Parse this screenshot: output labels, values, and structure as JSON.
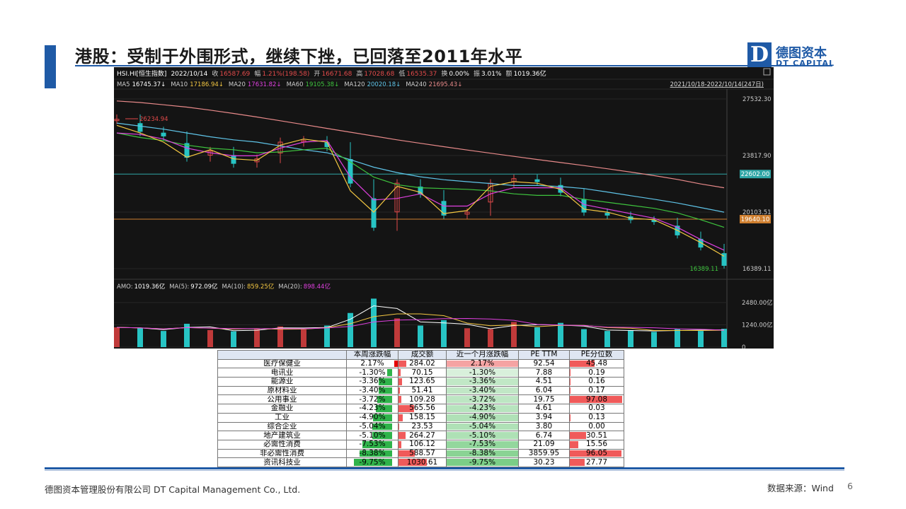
{
  "slide": {
    "title": "港股：受制于外围形式，继续下挫，已回落至2011年水平",
    "logo_mark": "D",
    "logo_cn": "德图资本",
    "logo_en": "DT CAPITAL",
    "footer_company": "德图资本管理股份有限公司  DT Capital  Management  Co., Ltd.",
    "footer_source": "数据来源：Wind",
    "page_number": "6",
    "accent_color": "#1f5aa6"
  },
  "chart_data": [
    {
      "type": "line",
      "chart_kind": "candlestick-with-moving-averages",
      "info_bar": {
        "symbol": "HSI.HI[恒生指数]",
        "date": "2022/10/14",
        "close_label": "收",
        "close": "16587.69",
        "change_label": "幅",
        "change": "1.21%(198.58)",
        "open_label": "开",
        "open": "16671.68",
        "high_label": "高",
        "high": "17028.68",
        "low_label": "低",
        "low": "16535.37",
        "turnover_label": "换",
        "turnover": "0.00%",
        "amplitude_label": "振",
        "amplitude": "3.01%",
        "amount_label": "额",
        "amount": "1019.36亿"
      },
      "ma_legend": [
        {
          "name": "MA5",
          "value": "16745.37↓",
          "color": "#ffffff"
        },
        {
          "name": "MA10",
          "value": "17186.94↓",
          "color": "#f5c842"
        },
        {
          "name": "MA20",
          "value": "17631.82↓",
          "color": "#e040e0"
        },
        {
          "name": "MA60",
          "value": "19105.38↓",
          "color": "#3ec43e"
        },
        {
          "name": "MA120",
          "value": "20020.18↓",
          "color": "#5fc4e8"
        },
        {
          "name": "MA240",
          "value": "21695.43↓",
          "color": "#e88a8a"
        }
      ],
      "date_range": "2021/10/18-2022/10/14(247日)",
      "y_axis": {
        "ticks": [
          "27532.30",
          "23817.90",
          "20103.51",
          "16389.11"
        ],
        "ylim": [
          16389.11,
          27532.3
        ]
      },
      "ref_lines": [
        {
          "label": "22602.00",
          "value": 22602,
          "color": "#2fa6a6"
        },
        {
          "label": "19640.10",
          "value": 19640.1,
          "color": "#d08030"
        }
      ],
      "annotations": [
        {
          "text": "26234.94",
          "value": 26234.94,
          "color": "#e24a4a"
        },
        {
          "text": "16389.11",
          "value": 16389.11,
          "color": "#3ec43e"
        }
      ],
      "ma_series": [
        {
          "name": "MA240",
          "color": "#e88a8a",
          "values": [
            27400,
            27300,
            27150,
            27000,
            26800,
            26580,
            26350,
            26100,
            25850,
            25600,
            25350,
            25100,
            24850,
            24620,
            24400,
            24180,
            23970,
            23760,
            23560,
            23360,
            23160,
            22950,
            22730,
            22500,
            22250,
            21950,
            21700
          ]
        },
        {
          "name": "MA120",
          "color": "#5fc4e8",
          "values": [
            25950,
            25750,
            25550,
            25300,
            25050,
            24850,
            24700,
            24450,
            24200,
            24000,
            23550,
            23050,
            22700,
            22420,
            22230,
            22100,
            21980,
            21850,
            21850,
            21780,
            21650,
            21420,
            21180,
            20950,
            20700,
            20400,
            20100
          ]
        },
        {
          "name": "MA60",
          "color": "#3ec43e",
          "values": [
            25300,
            25000,
            24800,
            24500,
            24300,
            24200,
            24000,
            24050,
            24200,
            24300,
            23400,
            22400,
            21900,
            21700,
            21650,
            21600,
            21500,
            21300,
            21200,
            21200,
            20950,
            20750,
            20550,
            20350,
            20050,
            19600,
            19100
          ]
        },
        {
          "name": "MA20",
          "color": "#e040e0",
          "values": [
            25300,
            25200,
            24900,
            24300,
            24000,
            23800,
            23800,
            24300,
            24700,
            24800,
            22400,
            20900,
            21000,
            21300,
            20500,
            20500,
            21300,
            21700,
            21700,
            21700,
            20600,
            20300,
            20000,
            19700,
            19100,
            18300,
            17600
          ]
        },
        {
          "name": "MA10",
          "color": "#f5c842",
          "values": [
            25800,
            25300,
            24700,
            23700,
            24200,
            23600,
            23500,
            24500,
            24900,
            24700,
            21500,
            20100,
            21800,
            21400,
            20000,
            20200,
            21800,
            22100,
            22000,
            21600,
            20300,
            20100,
            19700,
            19600,
            18900,
            18100,
            17200
          ]
        }
      ],
      "bar_values": [
        26200,
        25400,
        25100,
        23700,
        24100,
        23300,
        23600,
        24700,
        24800,
        24400,
        22000,
        19100,
        22000,
        21300,
        19900,
        20100,
        22000,
        22300,
        22100,
        21400,
        20100,
        19900,
        19600,
        19500,
        18600,
        17800,
        16600
      ],
      "volume": {
        "legend": [
          {
            "name": "AMO",
            "value": "1019.36亿",
            "color": "#ffffff"
          },
          {
            "name": "MA(5)",
            "value": "972.09亿",
            "color": "#ffffff"
          },
          {
            "name": "MA(10)",
            "value": "859.25亿",
            "color": "#f5c842"
          },
          {
            "name": "MA(20)",
            "value": "898.44亿",
            "color": "#e040e0"
          }
        ],
        "y_ticks": [
          "2480.00亿",
          "1240.00亿",
          "0"
        ],
        "ylim": [
          0,
          2480
        ],
        "values": [
          1100,
          1050,
          900,
          1300,
          950,
          880,
          1000,
          1150,
          980,
          1200,
          1900,
          2700,
          1600,
          1200,
          1500,
          1050,
          1000,
          1400,
          1100,
          1350,
          1000,
          900,
          950,
          850,
          1000,
          900,
          1019.36
        ]
      }
    },
    {
      "type": "table",
      "columns": [
        "",
        "本周涨跌幅",
        "成交额",
        "近一个月涨跌幅",
        "PE TTM",
        "PE分位数"
      ],
      "rows": [
        {
          "sector": "医疗保健业",
          "week_change": "2.17%",
          "week_val": 2.17,
          "amount": "284.02",
          "amount_val": 284.02,
          "month_change": "2.17%",
          "month_val": 2.17,
          "pe_ttm": "92.54",
          "pe_pct": "45.48",
          "pe_pct_val": 45.48
        },
        {
          "sector": "电讯业",
          "week_change": "-1.30%",
          "week_val": -1.3,
          "amount": "70.15",
          "amount_val": 70.15,
          "month_change": "-1.30%",
          "month_val": -1.3,
          "pe_ttm": "7.88",
          "pe_pct": "0.19",
          "pe_pct_val": 0.19
        },
        {
          "sector": "能源业",
          "week_change": "-3.36%",
          "week_val": -3.36,
          "amount": "123.65",
          "amount_val": 123.65,
          "month_change": "-3.36%",
          "month_val": -3.36,
          "pe_ttm": "4.51",
          "pe_pct": "0.16",
          "pe_pct_val": 0.16
        },
        {
          "sector": "原材料业",
          "week_change": "-3.40%",
          "week_val": -3.4,
          "amount": "51.41",
          "amount_val": 51.41,
          "month_change": "-3.40%",
          "month_val": -3.4,
          "pe_ttm": "6.04",
          "pe_pct": "0.17",
          "pe_pct_val": 0.17
        },
        {
          "sector": "公用事业",
          "week_change": "-3.72%",
          "week_val": -3.72,
          "amount": "109.28",
          "amount_val": 109.28,
          "month_change": "-3.72%",
          "month_val": -3.72,
          "pe_ttm": "19.75",
          "pe_pct": "97.08",
          "pe_pct_val": 97.08
        },
        {
          "sector": "金融业",
          "week_change": "-4.23%",
          "week_val": -4.23,
          "amount": "565.56",
          "amount_val": 565.56,
          "month_change": "-4.23%",
          "month_val": -4.23,
          "pe_ttm": "4.61",
          "pe_pct": "0.03",
          "pe_pct_val": 0.03
        },
        {
          "sector": "工业",
          "week_change": "-4.90%",
          "week_val": -4.9,
          "amount": "158.15",
          "amount_val": 158.15,
          "month_change": "-4.90%",
          "month_val": -4.9,
          "pe_ttm": "3.94",
          "pe_pct": "0.13",
          "pe_pct_val": 0.13
        },
        {
          "sector": "综合企业",
          "week_change": "-5.04%",
          "week_val": -5.04,
          "amount": "23.53",
          "amount_val": 23.53,
          "month_change": "-5.04%",
          "month_val": -5.04,
          "pe_ttm": "3.80",
          "pe_pct": "0.00",
          "pe_pct_val": 0
        },
        {
          "sector": "地产建筑业",
          "week_change": "-5.10%",
          "week_val": -5.1,
          "amount": "264.27",
          "amount_val": 264.27,
          "month_change": "-5.10%",
          "month_val": -5.1,
          "pe_ttm": "6.74",
          "pe_pct": "30.51",
          "pe_pct_val": 30.51
        },
        {
          "sector": "必需性消费",
          "week_change": "-7.53%",
          "week_val": -7.53,
          "amount": "106.12",
          "amount_val": 106.12,
          "month_change": "-7.53%",
          "month_val": -7.53,
          "pe_ttm": "21.09",
          "pe_pct": "15.56",
          "pe_pct_val": 15.56
        },
        {
          "sector": "非必需性消费",
          "week_change": "-8.38%",
          "week_val": -8.38,
          "amount": "588.57",
          "amount_val": 588.57,
          "month_change": "-8.38%",
          "month_val": -8.38,
          "pe_ttm": "3859.95",
          "pe_pct": "96.05",
          "pe_pct_val": 96.05
        },
        {
          "sector": "资讯科技业",
          "week_change": "-9.75%",
          "week_val": -9.75,
          "amount": "1030.61",
          "amount_val": 1030.61,
          "month_change": "-9.75%",
          "month_val": -9.75,
          "pe_ttm": "30.23",
          "pe_pct": "27.77",
          "pe_pct_val": 27.77
        }
      ]
    }
  ]
}
